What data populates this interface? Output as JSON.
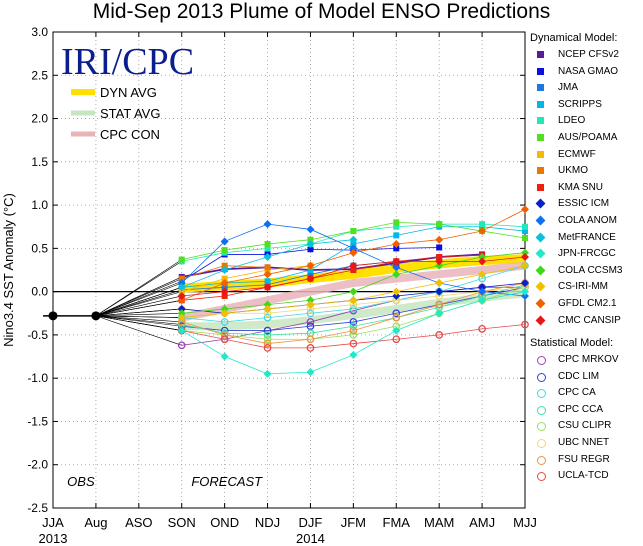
{
  "chart_data": {
    "type": "line",
    "title": "Mid-Sep 2013 Plume of Model ENSO Predictions",
    "ylabel": "Nino3.4 SST Anomaly (°C)",
    "xlabel": "",
    "ylim": [
      -2.5,
      3.0
    ],
    "yticks": [
      "-2.5",
      "-2.0",
      "-1.5",
      "-1.0",
      "-0.5",
      "0.0",
      "0.5",
      "1.0",
      "1.5",
      "2.0",
      "2.5",
      "3.0"
    ],
    "categories": [
      "JJA",
      "Aug",
      "ASO",
      "SON",
      "OND",
      "NDJ",
      "DJF",
      "JFM",
      "FMA",
      "MAM",
      "AMJ",
      "MJJ"
    ],
    "year_labels": [
      {
        "text": "2013",
        "at": "JJA"
      },
      {
        "text": "2014",
        "at": "DJF"
      }
    ],
    "grid": true,
    "annotations": {
      "obs": "OBS",
      "forecast": "FORECAST"
    },
    "logo": "IRI/CPC",
    "observed": {
      "x": [
        "JJA",
        "Aug"
      ],
      "values": [
        -0.28,
        -0.28
      ]
    },
    "averages": [
      {
        "name": "DYN AVG",
        "color": "#ffe000",
        "values": [
          0.04,
          0.07,
          0.1,
          0.15,
          0.2,
          0.27,
          0.32,
          0.36,
          0.38
        ]
      },
      {
        "name": "STAT AVG",
        "color": "#c6e6c0",
        "values": [
          -0.4,
          -0.4,
          -0.38,
          -0.33,
          -0.27,
          -0.2,
          -0.13,
          -0.07,
          -0.02
        ]
      },
      {
        "name": "CPC CON",
        "color": "#e8b4b8",
        "values": [
          -0.3,
          -0.2,
          -0.1,
          0.0,
          0.1,
          0.15,
          0.2,
          0.25,
          0.3
        ]
      }
    ],
    "dynamical_header": "Dynamical Model:",
    "statistical_header": "Statistical Model:",
    "dynamical": [
      {
        "name": "NCEP CFSv2",
        "color": "#5a1a9a",
        "values": [
          0.17,
          0.26,
          0.28,
          0.25,
          0.26,
          0.33,
          0.4,
          0.43,
          null
        ]
      },
      {
        "name": "NASA GMAO",
        "color": "#0a10e0",
        "values": [
          0.12,
          0.43,
          0.43,
          0.49,
          0.48,
          0.5,
          0.51,
          null,
          null
        ]
      },
      {
        "name": "JMA",
        "color": "#1e78e0",
        "values": [
          0.02,
          0.05,
          0.08,
          0.2,
          0.3,
          0.35,
          null,
          null,
          null
        ]
      },
      {
        "name": "SCRIPPS",
        "color": "#00b8e8",
        "values": [
          0.05,
          0.1,
          0.12,
          0.25,
          0.55,
          0.65,
          0.75,
          0.75,
          0.7
        ]
      },
      {
        "name": "LDEO",
        "color": "#20e8b8",
        "values": [
          0.35,
          0.45,
          0.5,
          0.55,
          0.7,
          0.75,
          0.78,
          0.78,
          0.75
        ]
      },
      {
        "name": "AUS/POAMA",
        "color": "#50e020",
        "values": [
          0.37,
          0.48,
          0.55,
          0.6,
          0.7,
          0.8,
          0.78,
          0.7,
          0.62
        ]
      },
      {
        "name": "ECMWF",
        "color": "#f8b800",
        "values": [
          0.0,
          0.15,
          0.25,
          0.3,
          null,
          null,
          null,
          null,
          null
        ]
      },
      {
        "name": "UKMO",
        "color": "#e87800",
        "values": [
          0.15,
          0.3,
          0.28,
          null,
          null,
          null,
          null,
          null,
          null
        ]
      },
      {
        "name": "KMA SNU",
        "color": "#f02010",
        "values": [
          -0.1,
          -0.05,
          0.05,
          0.15,
          0.25,
          0.35,
          0.4,
          0.42,
          null
        ]
      },
      {
        "name": "ESSIC ICM",
        "color": "#0820c8",
        "values": [
          -0.2,
          -0.25,
          -0.2,
          -0.15,
          -0.1,
          -0.05,
          0.0,
          0.05,
          0.1
        ]
      },
      {
        "name": "COLA ANOM",
        "color": "#1070f0",
        "values": [
          0.1,
          0.58,
          0.78,
          0.72,
          0.5,
          0.28,
          0.1,
          0.0,
          -0.05
        ]
      },
      {
        "name": "MetFRANCE",
        "color": "#08c0e0",
        "values": [
          0.05,
          0.25,
          0.4,
          0.55,
          0.6,
          null,
          null,
          null,
          null
        ]
      },
      {
        "name": "JPN-FRCGC",
        "color": "#20e8c8",
        "values": [
          -0.45,
          -0.75,
          -0.95,
          -0.93,
          -0.73,
          -0.45,
          -0.25,
          -0.1,
          0.0
        ]
      },
      {
        "name": "COLA CCSM3",
        "color": "#40d818",
        "values": [
          -0.25,
          -0.2,
          -0.15,
          -0.1,
          0.0,
          0.2,
          0.3,
          0.4,
          0.45
        ]
      },
      {
        "name": "CS-IRI-MM",
        "color": "#f0c000",
        "values": [
          -0.3,
          -0.25,
          -0.2,
          -0.15,
          -0.1,
          0.0,
          0.1,
          0.2,
          0.3
        ]
      },
      {
        "name": "GFDL CM2.1",
        "color": "#f06000",
        "values": [
          -0.1,
          0.1,
          0.2,
          0.3,
          0.45,
          0.55,
          0.6,
          0.7,
          0.95
        ]
      },
      {
        "name": "CMC CANSIP",
        "color": "#e81818",
        "values": [
          -0.05,
          0.0,
          0.05,
          0.15,
          0.3,
          0.35,
          0.35,
          0.35,
          0.4
        ]
      }
    ],
    "statistical": [
      {
        "name": "CPC MRKOV",
        "color": "#9a40b0",
        "values": [
          -0.62,
          -0.55,
          -0.45,
          -0.35,
          -0.22,
          -0.1,
          0.0,
          0.05,
          0.05
        ]
      },
      {
        "name": "CDC LIM",
        "color": "#3040d8",
        "values": [
          -0.4,
          -0.45,
          -0.45,
          -0.4,
          -0.35,
          -0.25,
          -0.15,
          -0.05,
          0.05
        ]
      },
      {
        "name": "CPC CA",
        "color": "#40d8e0",
        "values": [
          -0.3,
          -0.35,
          -0.3,
          -0.25,
          -0.2,
          -0.1,
          0.0,
          0.15,
          0.3
        ]
      },
      {
        "name": "CPC CCA",
        "color": "#40e0a0",
        "values": [
          -0.38,
          -0.48,
          -0.5,
          -0.48,
          -0.4,
          -0.3,
          -0.18,
          -0.05,
          0.08
        ]
      },
      {
        "name": "CSU CLIPR",
        "color": "#98e060",
        "values": [
          -0.45,
          -0.5,
          -0.55,
          -0.55,
          -0.5,
          -0.4,
          -0.25,
          -0.1,
          0.05
        ]
      },
      {
        "name": "UBC NNET",
        "color": "#f0d870",
        "values": [
          -0.2,
          -0.25,
          -0.25,
          -0.2,
          -0.15,
          -0.1,
          -0.05,
          0.0,
          0.05
        ]
      },
      {
        "name": "FSU REGR",
        "color": "#f09040",
        "values": [
          -0.35,
          -0.5,
          -0.6,
          -0.55,
          -0.45,
          -0.3,
          -0.15,
          0.0,
          0.1
        ]
      },
      {
        "name": "UCLA-TCD",
        "color": "#e84848",
        "values": [
          -0.45,
          -0.55,
          -0.65,
          -0.65,
          -0.6,
          -0.55,
          -0.5,
          -0.43,
          -0.38
        ]
      }
    ]
  }
}
